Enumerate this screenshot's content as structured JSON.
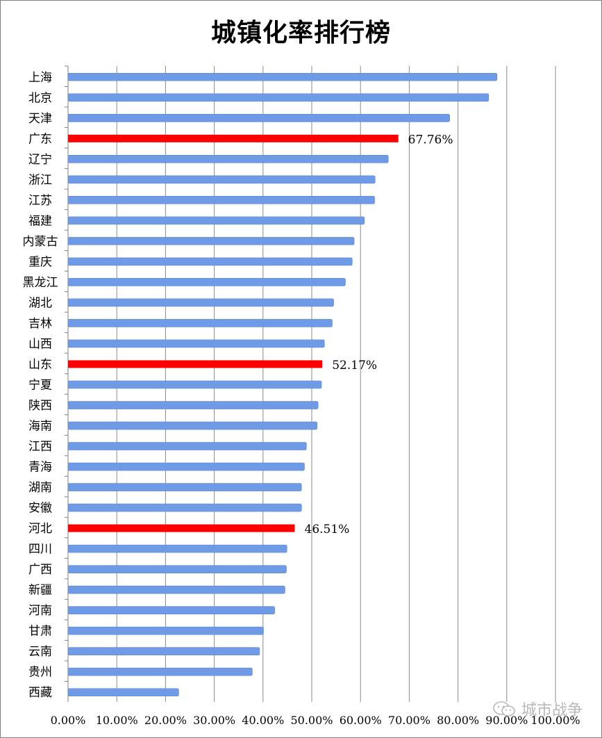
{
  "chart_data": {
    "type": "bar",
    "orientation": "horizontal",
    "title": "城镇化率排行榜",
    "xlabel": "",
    "ylabel": "",
    "xlim": [
      0,
      100
    ],
    "x_ticks": [
      0,
      10,
      20,
      30,
      40,
      50,
      60,
      70,
      80,
      90,
      100
    ],
    "x_tick_labels": [
      "0.00%",
      "10.00%",
      "20.00%",
      "30.00%",
      "40.00%",
      "50.00%",
      "60.00%",
      "70.00%",
      "80.00%",
      "90.00%",
      "100.00%"
    ],
    "grid": "vertical",
    "legend": "none",
    "categories": [
      "上海",
      "北京",
      "天津",
      "广东",
      "辽宁",
      "浙江",
      "江苏",
      "福建",
      "内蒙古",
      "重庆",
      "黑龙江",
      "湖北",
      "吉林",
      "山西",
      "山东",
      "宁夏",
      "陕西",
      "海南",
      "江西",
      "青海",
      "湖南",
      "安徽",
      "河北",
      "四川",
      "广西",
      "新疆",
      "河南",
      "甘肃",
      "云南",
      "贵州",
      "西藏"
    ],
    "values": [
      88.0,
      86.3,
      78.3,
      67.76,
      65.7,
      63.0,
      62.9,
      60.8,
      58.7,
      58.3,
      56.9,
      54.5,
      54.2,
      52.6,
      52.17,
      52.0,
      51.3,
      51.1,
      48.9,
      48.5,
      47.9,
      47.9,
      46.51,
      44.9,
      44.8,
      44.5,
      42.4,
      40.1,
      39.3,
      37.8,
      22.7
    ],
    "highlighted": [
      "广东",
      "山东",
      "河北"
    ],
    "data_labels": {
      "广东": "67.76%",
      "山东": "52.17%",
      "河北": "46.51%"
    },
    "colors": {
      "bar": "#6f9be6",
      "highlight": "#ff0000",
      "grid": "#8a8a8a"
    }
  },
  "watermark": {
    "text": "城市战争",
    "icon": "wechat-icon"
  }
}
